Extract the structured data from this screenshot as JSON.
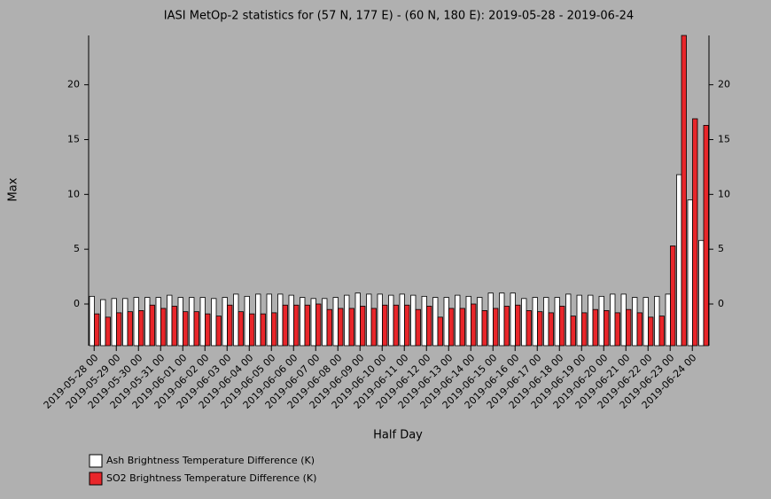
{
  "chart_data": {
    "type": "bar",
    "title": "IASI MetOp-2 statistics for (57 N, 177 E) - (60 N, 180 E): 2019-05-28 - 2019-06-24",
    "x_label": "Half Day",
    "y_label": "Max",
    "categories": [
      "2019-05-28 00",
      null,
      "2019-05-29 00",
      null,
      "2019-05-30 00",
      null,
      "2019-05-31 00",
      null,
      "2019-06-01 00",
      null,
      "2019-06-02 00",
      null,
      "2019-06-03 00",
      null,
      "2019-06-04 00",
      null,
      "2019-06-05 00",
      null,
      "2019-06-06 00",
      null,
      "2019-06-07 00",
      null,
      "2019-06-08 00",
      null,
      "2019-06-09 00",
      null,
      "2019-06-10 00",
      null,
      "2019-06-11 00",
      null,
      "2019-06-12 00",
      null,
      "2019-06-13 00",
      null,
      "2019-06-14 00",
      null,
      "2019-06-15 00",
      null,
      "2019-06-16 00",
      null,
      "2019-06-17 00",
      null,
      "2019-06-18 00",
      null,
      "2019-06-19 00",
      null,
      "2019-06-20 00",
      null,
      "2019-06-21 00",
      null,
      "2019-06-22 00",
      null,
      "2019-06-23 00",
      null,
      "2019-06-24 00",
      null
    ],
    "series": [
      {
        "name": "Ash Brightness Temperature Difference (K)",
        "color": "#ffffff",
        "values": [
          0.7,
          0.4,
          0.5,
          0.5,
          0.6,
          0.6,
          0.6,
          0.8,
          0.6,
          0.6,
          0.6,
          0.5,
          0.6,
          0.9,
          0.7,
          0.9,
          0.9,
          0.9,
          0.8,
          0.6,
          0.5,
          0.5,
          0.6,
          0.8,
          1.0,
          0.9,
          0.9,
          0.8,
          0.9,
          0.8,
          0.7,
          0.6,
          0.6,
          0.8,
          0.7,
          0.6,
          1.0,
          1.0,
          1.0,
          0.5,
          0.6,
          0.6,
          0.6,
          0.9,
          0.8,
          0.8,
          0.7,
          0.9,
          0.9,
          0.6,
          0.6,
          0.7,
          0.9,
          11.8,
          9.5,
          5.8
        ]
      },
      {
        "name": "SO2 Brightness Temperature Difference (K)",
        "color": "#e8262a",
        "values": [
          -0.9,
          -1.2,
          -0.8,
          -0.7,
          -0.6,
          -0.1,
          -0.4,
          -0.2,
          -0.7,
          -0.7,
          -0.9,
          -1.1,
          -0.1,
          -0.7,
          -0.9,
          -0.9,
          -0.8,
          -0.1,
          -0.1,
          -0.1,
          0,
          -0.5,
          -0.4,
          -0.4,
          -0.2,
          -0.4,
          -0.1,
          -0.1,
          -0.1,
          -0.5,
          -0.2,
          -1.2,
          -0.4,
          -0.4,
          0,
          -0.6,
          -0.4,
          -0.2,
          -0.1,
          -0.6,
          -0.7,
          -0.8,
          -0.2,
          -1.1,
          -0.8,
          -0.5,
          -0.6,
          -0.8,
          -0.5,
          -0.8,
          -1.2,
          -1.1,
          5.3,
          24.5,
          16.9,
          16.3
        ]
      }
    ],
    "ylim": [
      -3.8,
      24.5
    ],
    "yticks": [
      0,
      5,
      10,
      15,
      20
    ]
  }
}
